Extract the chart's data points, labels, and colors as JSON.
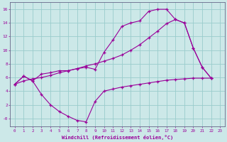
{
  "xlabel": "Windchill (Refroidissement éolien,°C)",
  "background_color": "#cce8e8",
  "grid_color": "#99cccc",
  "line_color": "#990099",
  "xlim": [
    -0.5,
    23.5
  ],
  "ylim": [
    -1.2,
    17
  ],
  "yticks": [
    0,
    2,
    4,
    6,
    8,
    10,
    12,
    14,
    16
  ],
  "ytick_labels": [
    "-0",
    "2",
    "4",
    "6",
    "8",
    "10",
    "12",
    "14",
    "16"
  ],
  "xticks": [
    0,
    1,
    2,
    3,
    4,
    5,
    6,
    7,
    8,
    9,
    10,
    11,
    12,
    13,
    14,
    15,
    16,
    17,
    18,
    19,
    20,
    21,
    22,
    23
  ],
  "curve1_x": [
    0,
    1,
    2,
    3,
    4,
    5,
    6,
    7,
    8,
    9,
    10,
    11,
    12,
    13,
    14,
    15,
    16,
    17,
    18,
    19,
    20,
    21,
    22
  ],
  "curve1_y": [
    5.0,
    6.2,
    5.5,
    6.5,
    6.7,
    7.0,
    7.0,
    7.3,
    7.5,
    7.2,
    9.7,
    11.5,
    13.5,
    14.0,
    14.3,
    15.7,
    16.0,
    16.0,
    14.5,
    14.0,
    10.3,
    7.5,
    5.9
  ],
  "curve2_x": [
    0,
    1,
    2,
    3,
    4,
    5,
    6,
    7,
    8,
    9,
    10,
    11,
    12,
    13,
    14,
    15,
    16,
    17,
    18,
    19,
    20,
    21,
    22
  ],
  "curve2_y": [
    5.0,
    5.5,
    5.8,
    6.0,
    6.3,
    6.7,
    7.0,
    7.3,
    7.7,
    8.0,
    8.4,
    8.8,
    9.3,
    10.0,
    10.8,
    11.8,
    12.8,
    13.9,
    14.5,
    14.0,
    10.3,
    7.5,
    5.9
  ],
  "curve3_x": [
    0,
    1,
    2,
    3,
    4,
    5,
    6,
    7,
    8,
    9,
    10,
    11,
    12,
    13,
    14,
    15,
    16,
    17,
    18,
    19,
    20,
    21,
    22
  ],
  "curve3_y": [
    5.0,
    6.2,
    5.5,
    3.5,
    2.0,
    1.0,
    0.3,
    -0.3,
    -0.5,
    2.5,
    4.0,
    4.3,
    4.6,
    4.8,
    5.0,
    5.2,
    5.4,
    5.6,
    5.7,
    5.8,
    5.9,
    5.9,
    5.9
  ]
}
